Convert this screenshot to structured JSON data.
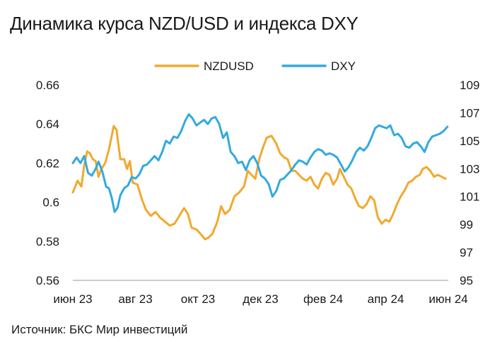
{
  "title": "Динамика курса NZD/USD и индекса DXY",
  "source": "Источник: БКС Мир инвестиций",
  "colors": {
    "nzdusd": "#F2A92E",
    "dxy": "#34A9DF",
    "axis": "#999999",
    "text": "#1a1a1a"
  },
  "chart_data": {
    "type": "line",
    "title": "Динамика курса NZD/USD и индекса DXY",
    "legend_position": "top",
    "grid": false,
    "x_ticks": [
      "июн 23",
      "авг 23",
      "окт 23",
      "дек 23",
      "фев 24",
      "апр 24",
      "июн 24"
    ],
    "xlim": [
      "2023-06-01",
      "2024-06-30"
    ],
    "y_left": {
      "ticks": [
        "0.56",
        "0.58",
        "0.6",
        "0.62",
        "0.64",
        "0.66"
      ],
      "ylim": [
        0.56,
        0.66
      ]
    },
    "y_right": {
      "ticks": [
        "95",
        "97",
        "99",
        "101",
        "103",
        "105",
        "107",
        "109"
      ],
      "ylim": [
        95,
        109
      ]
    },
    "series": [
      {
        "name": "NZDUSD",
        "axis": "left",
        "color": "#F2A92E",
        "points": [
          [
            "2023-06-01",
            0.605
          ],
          [
            "2023-06-06",
            0.611
          ],
          [
            "2023-06-10",
            0.608
          ],
          [
            "2023-06-13",
            0.619
          ],
          [
            "2023-06-16",
            0.626
          ],
          [
            "2023-06-19",
            0.625
          ],
          [
            "2023-06-22",
            0.622
          ],
          [
            "2023-06-25",
            0.621
          ],
          [
            "2023-06-28",
            0.613
          ],
          [
            "2023-07-01",
            0.617
          ],
          [
            "2023-07-05",
            0.62
          ],
          [
            "2023-07-09",
            0.627
          ],
          [
            "2023-07-14",
            0.639
          ],
          [
            "2023-07-17",
            0.637
          ],
          [
            "2023-07-21",
            0.622
          ],
          [
            "2023-07-25",
            0.622
          ],
          [
            "2023-07-28",
            0.617
          ],
          [
            "2023-07-31",
            0.621
          ],
          [
            "2023-08-03",
            0.61
          ],
          [
            "2023-08-08",
            0.609
          ],
          [
            "2023-08-13",
            0.601
          ],
          [
            "2023-08-17",
            0.596
          ],
          [
            "2023-08-22",
            0.593
          ],
          [
            "2023-08-27",
            0.595
          ],
          [
            "2023-09-01",
            0.592
          ],
          [
            "2023-09-06",
            0.59
          ],
          [
            "2023-09-11",
            0.588
          ],
          [
            "2023-09-16",
            0.589
          ],
          [
            "2023-09-21",
            0.593
          ],
          [
            "2023-09-26",
            0.597
          ],
          [
            "2023-09-30",
            0.594
          ],
          [
            "2023-10-04",
            0.587
          ],
          [
            "2023-10-09",
            0.586
          ],
          [
            "2023-10-13",
            0.584
          ],
          [
            "2023-10-18",
            0.581
          ],
          [
            "2023-10-22",
            0.582
          ],
          [
            "2023-10-26",
            0.584
          ],
          [
            "2023-10-31",
            0.59
          ],
          [
            "2023-11-04",
            0.598
          ],
          [
            "2023-11-08",
            0.594
          ],
          [
            "2023-11-13",
            0.596
          ],
          [
            "2023-11-18",
            0.603
          ],
          [
            "2023-11-23",
            0.605
          ],
          [
            "2023-11-28",
            0.608
          ],
          [
            "2023-12-02",
            0.616
          ],
          [
            "2023-12-06",
            0.614
          ],
          [
            "2023-12-10",
            0.612
          ],
          [
            "2023-12-14",
            0.622
          ],
          [
            "2023-12-18",
            0.628
          ],
          [
            "2023-12-22",
            0.633
          ],
          [
            "2023-12-27",
            0.634
          ],
          [
            "2024-01-01",
            0.63
          ],
          [
            "2024-01-05",
            0.625
          ],
          [
            "2024-01-09",
            0.623
          ],
          [
            "2024-01-13",
            0.622
          ],
          [
            "2024-01-17",
            0.616
          ],
          [
            "2024-01-21",
            0.616
          ],
          [
            "2024-01-25",
            0.614
          ],
          [
            "2024-01-29",
            0.612
          ],
          [
            "2024-02-02",
            0.611
          ],
          [
            "2024-02-06",
            0.613
          ],
          [
            "2024-02-10",
            0.609
          ],
          [
            "2024-02-14",
            0.607
          ],
          [
            "2024-02-18",
            0.612
          ],
          [
            "2024-02-22",
            0.615
          ],
          [
            "2024-02-26",
            0.614
          ],
          [
            "2024-03-01",
            0.609
          ],
          [
            "2024-03-05",
            0.612
          ],
          [
            "2024-03-08",
            0.617
          ],
          [
            "2024-03-12",
            0.613
          ],
          [
            "2024-03-16",
            0.609
          ],
          [
            "2024-03-20",
            0.607
          ],
          [
            "2024-03-24",
            0.602
          ],
          [
            "2024-03-28",
            0.598
          ],
          [
            "2024-04-01",
            0.597
          ],
          [
            "2024-04-05",
            0.599
          ],
          [
            "2024-04-09",
            0.603
          ],
          [
            "2024-04-13",
            0.601
          ],
          [
            "2024-04-17",
            0.592
          ],
          [
            "2024-04-21",
            0.589
          ],
          [
            "2024-04-25",
            0.591
          ],
          [
            "2024-04-29",
            0.59
          ],
          [
            "2024-05-03",
            0.594
          ],
          [
            "2024-05-07",
            0.599
          ],
          [
            "2024-05-11",
            0.603
          ],
          [
            "2024-05-15",
            0.606
          ],
          [
            "2024-05-19",
            0.61
          ],
          [
            "2024-05-23",
            0.611
          ],
          [
            "2024-05-27",
            0.613
          ],
          [
            "2024-05-31",
            0.614
          ],
          [
            "2024-06-03",
            0.617
          ],
          [
            "2024-06-07",
            0.618
          ],
          [
            "2024-06-11",
            0.616
          ],
          [
            "2024-06-15",
            0.613
          ],
          [
            "2024-06-19",
            0.614
          ],
          [
            "2024-06-23",
            0.613
          ],
          [
            "2024-06-27",
            0.612
          ]
        ]
      },
      {
        "name": "DXY",
        "axis": "right",
        "color": "#34A9DF",
        "points": [
          [
            "2023-06-01",
            103.4
          ],
          [
            "2023-06-05",
            103.8
          ],
          [
            "2023-06-09",
            103.4
          ],
          [
            "2023-06-13",
            103.9
          ],
          [
            "2023-06-17",
            102.7
          ],
          [
            "2023-06-21",
            102.5
          ],
          [
            "2023-06-25",
            103.0
          ],
          [
            "2023-06-28",
            103.5
          ],
          [
            "2023-07-02",
            102.8
          ],
          [
            "2023-07-06",
            101.7
          ],
          [
            "2023-07-09",
            101.6
          ],
          [
            "2023-07-12",
            100.9
          ],
          [
            "2023-07-15",
            99.9
          ],
          [
            "2023-07-18",
            100.2
          ],
          [
            "2023-07-21",
            101.1
          ],
          [
            "2023-07-25",
            101.6
          ],
          [
            "2023-07-29",
            101.8
          ],
          [
            "2023-08-02",
            102.4
          ],
          [
            "2023-08-06",
            102.3
          ],
          [
            "2023-08-10",
            102.6
          ],
          [
            "2023-08-14",
            103.2
          ],
          [
            "2023-08-18",
            103.3
          ],
          [
            "2023-08-22",
            103.6
          ],
          [
            "2023-08-26",
            103.9
          ],
          [
            "2023-08-30",
            103.6
          ],
          [
            "2023-09-03",
            104.2
          ],
          [
            "2023-09-07",
            105.0
          ],
          [
            "2023-09-11",
            104.8
          ],
          [
            "2023-09-15",
            105.3
          ],
          [
            "2023-09-19",
            105.2
          ],
          [
            "2023-09-23",
            105.7
          ],
          [
            "2023-09-27",
            106.4
          ],
          [
            "2023-10-01",
            106.9
          ],
          [
            "2023-10-05",
            106.6
          ],
          [
            "2023-10-09",
            106.1
          ],
          [
            "2023-10-13",
            106.3
          ],
          [
            "2023-10-17",
            106.5
          ],
          [
            "2023-10-21",
            106.2
          ],
          [
            "2023-10-25",
            106.6
          ],
          [
            "2023-10-29",
            106.7
          ],
          [
            "2023-11-02",
            106.2
          ],
          [
            "2023-11-06",
            105.2
          ],
          [
            "2023-11-10",
            105.6
          ],
          [
            "2023-11-14",
            104.2
          ],
          [
            "2023-11-18",
            103.9
          ],
          [
            "2023-11-22",
            103.4
          ],
          [
            "2023-11-26",
            103.5
          ],
          [
            "2023-11-30",
            102.9
          ],
          [
            "2023-12-04",
            103.6
          ],
          [
            "2023-12-08",
            103.9
          ],
          [
            "2023-12-12",
            103.4
          ],
          [
            "2023-12-16",
            102.5
          ],
          [
            "2023-12-20",
            102.3
          ],
          [
            "2023-12-24",
            101.9
          ],
          [
            "2023-12-28",
            101.0
          ],
          [
            "2024-01-01",
            101.4
          ],
          [
            "2024-01-05",
            102.2
          ],
          [
            "2024-01-09",
            102.3
          ],
          [
            "2024-01-13",
            102.6
          ],
          [
            "2024-01-17",
            102.9
          ],
          [
            "2024-01-21",
            103.3
          ],
          [
            "2024-01-25",
            103.6
          ],
          [
            "2024-01-29",
            103.5
          ],
          [
            "2024-02-02",
            103.3
          ],
          [
            "2024-02-06",
            103.8
          ],
          [
            "2024-02-10",
            104.2
          ],
          [
            "2024-02-14",
            104.4
          ],
          [
            "2024-02-18",
            104.3
          ],
          [
            "2024-02-22",
            104.0
          ],
          [
            "2024-02-26",
            104.1
          ],
          [
            "2024-03-01",
            104.0
          ],
          [
            "2024-03-05",
            103.8
          ],
          [
            "2024-03-09",
            103.3
          ],
          [
            "2024-03-13",
            102.8
          ],
          [
            "2024-03-17",
            103.1
          ],
          [
            "2024-03-21",
            103.6
          ],
          [
            "2024-03-25",
            104.2
          ],
          [
            "2024-03-29",
            104.5
          ],
          [
            "2024-04-02",
            104.3
          ],
          [
            "2024-04-06",
            104.6
          ],
          [
            "2024-04-10",
            105.2
          ],
          [
            "2024-04-14",
            105.9
          ],
          [
            "2024-04-18",
            106.1
          ],
          [
            "2024-04-22",
            106.0
          ],
          [
            "2024-04-26",
            105.9
          ],
          [
            "2024-04-30",
            106.1
          ],
          [
            "2024-05-04",
            105.4
          ],
          [
            "2024-05-08",
            105.5
          ],
          [
            "2024-05-12",
            105.2
          ],
          [
            "2024-05-16",
            104.6
          ],
          [
            "2024-05-20",
            104.5
          ],
          [
            "2024-05-24",
            104.8
          ],
          [
            "2024-05-28",
            104.9
          ],
          [
            "2024-06-01",
            104.6
          ],
          [
            "2024-06-05",
            104.2
          ],
          [
            "2024-06-09",
            104.9
          ],
          [
            "2024-06-13",
            105.3
          ],
          [
            "2024-06-17",
            105.4
          ],
          [
            "2024-06-21",
            105.5
          ],
          [
            "2024-06-25",
            105.7
          ],
          [
            "2024-06-29",
            106.0
          ]
        ]
      }
    ]
  }
}
